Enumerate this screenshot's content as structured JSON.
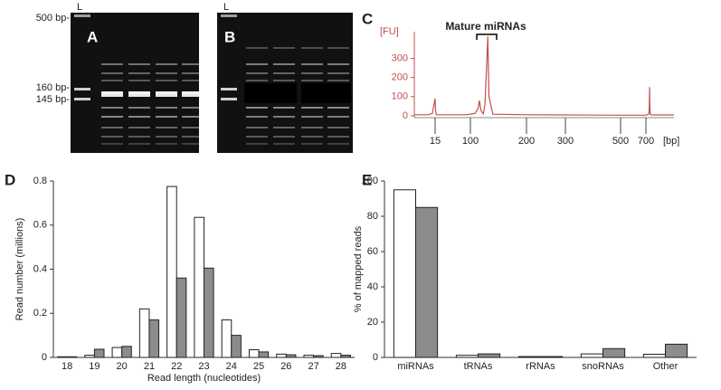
{
  "gels": [
    {
      "panel": "A",
      "lane_label": "L",
      "markers": [
        "500 bp-",
        "160 bp-",
        "145 bp-"
      ]
    },
    {
      "panel": "B",
      "lane_label": "L"
    }
  ],
  "chart_data": [
    {
      "type": "line",
      "panel": "C",
      "annotation": "Mature miRNAs",
      "ylabel": "[FU]",
      "xlabel": "[bp]",
      "color": "#c0504d",
      "x": [
        0,
        10,
        13,
        15,
        16,
        18,
        90,
        108,
        114,
        116,
        119,
        123,
        126,
        129,
        131,
        133,
        140,
        200,
        300,
        500,
        700,
        724,
        727,
        729,
        731,
        735,
        760,
        920
      ],
      "y": [
        5,
        5,
        12,
        90,
        25,
        5,
        5,
        12,
        40,
        80,
        25,
        10,
        60,
        270,
        415,
        100,
        8,
        5,
        4,
        3,
        3,
        10,
        60,
        150,
        40,
        5,
        4,
        4
      ],
      "xlim": [
        0,
        920
      ],
      "xticks": [
        15,
        100,
        200,
        300,
        500,
        700
      ],
      "ylim": [
        -10,
        440
      ],
      "yticks": [
        0,
        100,
        200,
        300
      ]
    },
    {
      "type": "bar",
      "panel": "D",
      "ylabel": "Read number (millions)",
      "xlabel": "Read length (nucleotides)",
      "categories": [
        "18",
        "19",
        "20",
        "21",
        "22",
        "23",
        "24",
        "25",
        "26",
        "27",
        "28"
      ],
      "series": [
        {
          "color": "#ffffff",
          "values": [
            0.003,
            0.01,
            0.045,
            0.22,
            0.775,
            0.635,
            0.17,
            0.035,
            0.015,
            0.01,
            0.018
          ]
        },
        {
          "color": "#8c8c8c",
          "values": [
            0.003,
            0.037,
            0.05,
            0.17,
            0.36,
            0.405,
            0.1,
            0.025,
            0.012,
            0.008,
            0.01
          ]
        }
      ],
      "ylim": [
        0,
        0.8
      ],
      "yticks": [
        0,
        0.2,
        0.4,
        0.6,
        0.8
      ]
    },
    {
      "type": "bar",
      "panel": "E",
      "ylabel": "% of mapped reads",
      "categories": [
        "miRNAs",
        "tRNAs",
        "rRNAs",
        "snoRNAs",
        "Other"
      ],
      "series": [
        {
          "color": "#ffffff",
          "values": [
            95,
            1.2,
            0.5,
            2,
            1.8
          ]
        },
        {
          "color": "#8c8c8c",
          "values": [
            85,
            2,
            0.5,
            5,
            7.5
          ]
        }
      ],
      "ylim": [
        0,
        100
      ],
      "yticks": [
        0,
        20,
        40,
        60,
        80,
        100
      ]
    }
  ]
}
